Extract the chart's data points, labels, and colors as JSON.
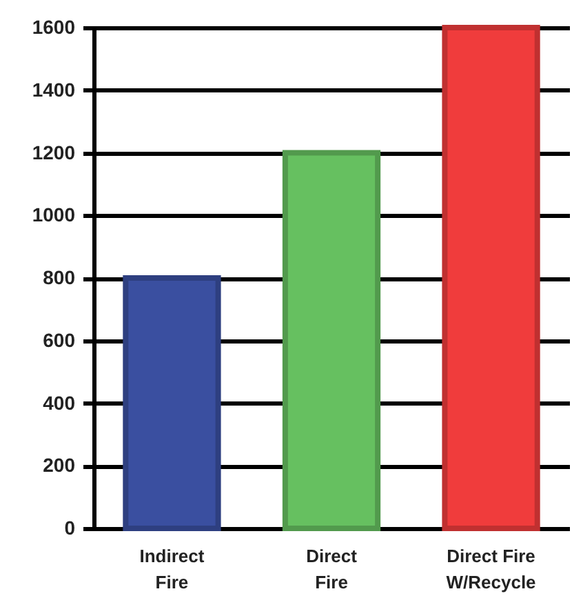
{
  "chart_data": {
    "type": "bar",
    "categories": [
      "Indirect Fire",
      "Direct Fire",
      "Direct Fire W/Recycle"
    ],
    "values": [
      800,
      1200,
      1600
    ],
    "colors": [
      "#3a4fa0",
      "#66c060",
      "#f03c3c"
    ],
    "ylim": [
      0,
      1600
    ],
    "yticks": [
      0,
      200,
      400,
      600,
      800,
      1000,
      1200,
      1400,
      1600
    ],
    "grid": "y"
  }
}
